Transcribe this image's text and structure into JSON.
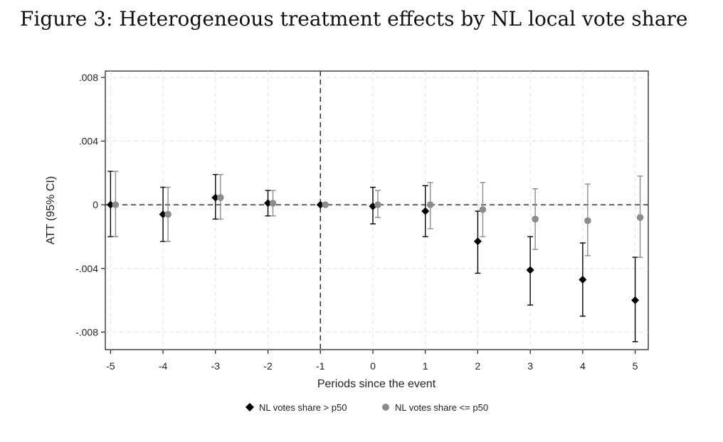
{
  "figure": {
    "title": "Figure 3: Heterogeneous treatment effects by NL local vote share"
  },
  "chart_data": {
    "type": "scatter",
    "subtype": "event-study coefficient plot with 95% CI",
    "xlabel": "Periods since the event",
    "ylabel": "ATT (95% CI)",
    "xlim": [
      -5.1,
      5.25
    ],
    "ylim": [
      -0.0091,
      0.0084
    ],
    "x_ticks": [
      -5,
      -4,
      -3,
      -2,
      -1,
      0,
      1,
      2,
      3,
      4,
      5
    ],
    "x_tick_labels": [
      "-5",
      "-4",
      "-3",
      "-2",
      "-1",
      "0",
      "1",
      "2",
      "3",
      "4",
      "5"
    ],
    "y_ticks": [
      0.008,
      0.004,
      0,
      -0.004,
      -0.008
    ],
    "y_tick_labels": [
      ".008",
      ".004",
      "0",
      "-.004",
      "-.008"
    ],
    "reference_lines": {
      "y": 0,
      "x": -1,
      "style": "dashed"
    },
    "grid": true,
    "legend_position": "bottom",
    "series": [
      {
        "name": "NL votes share > p50",
        "marker": "diamond",
        "color": "#000000",
        "x": [
          -5,
          -4,
          -3,
          -2,
          -1,
          0,
          1,
          2,
          3,
          4,
          5
        ],
        "y": [
          0.0,
          -0.0006,
          0.00045,
          0.0001,
          0.0,
          -0.0001,
          -0.0004,
          -0.0023,
          -0.0041,
          -0.0047,
          -0.006
        ],
        "ci_low": [
          -0.002,
          -0.0023,
          -0.0009,
          -0.0007,
          0.0,
          -0.0012,
          -0.002,
          -0.0043,
          -0.0063,
          -0.007,
          -0.0086
        ],
        "ci_high": [
          0.0021,
          0.0011,
          0.0019,
          0.0009,
          0.0,
          0.0011,
          0.0012,
          -0.0004,
          -0.002,
          -0.0024,
          -0.0033
        ]
      },
      {
        "name": "NL votes share <= p50",
        "marker": "circle",
        "color": "#8c8c8c",
        "x": [
          -5,
          -4,
          -3,
          -2,
          -1,
          0,
          1,
          2,
          3,
          4,
          5
        ],
        "y": [
          0.0,
          -0.0006,
          0.00045,
          0.0001,
          0.0,
          0.0,
          -0.0,
          -0.0003,
          -0.0009,
          -0.001,
          -0.0008
        ],
        "ci_low": [
          -0.002,
          -0.0023,
          -0.0009,
          -0.0007,
          0.0,
          -0.0008,
          -0.0015,
          -0.002,
          -0.0028,
          -0.0032,
          -0.0033
        ],
        "ci_high": [
          0.0021,
          0.0011,
          0.0019,
          0.0009,
          0.0,
          0.0009,
          0.0014,
          0.0014,
          0.001,
          0.0013,
          0.0018
        ]
      }
    ]
  }
}
